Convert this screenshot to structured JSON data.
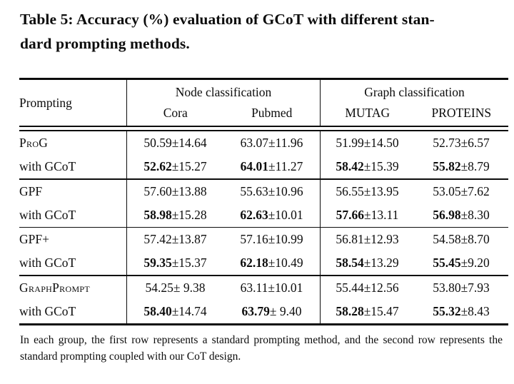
{
  "caption": {
    "line1": "Table 5: Accuracy (%) evaluation of GCoT with different stan-",
    "line2": "dard prompting methods."
  },
  "header": {
    "prompting": "Prompting",
    "groups": [
      {
        "label": "Node classification",
        "cols": [
          "Cora",
          "Pubmed"
        ]
      },
      {
        "label": "Graph classification",
        "cols": [
          "MUTAG",
          "PROTEINS"
        ]
      }
    ]
  },
  "body": {
    "groups": [
      {
        "rows": [
          {
            "method": "ProG",
            "smallcaps": true,
            "bold": false,
            "cells": [
              {
                "mean": "50.59",
                "std": "±14.64"
              },
              {
                "mean": "63.07",
                "std": "±11.96"
              },
              {
                "mean": "51.99",
                "std": "±14.50"
              },
              {
                "mean": "52.73",
                "std": "±6.57"
              }
            ]
          },
          {
            "method": "with GCoT",
            "smallcaps": false,
            "bold": true,
            "cells": [
              {
                "mean": "52.62",
                "std": "±15.27"
              },
              {
                "mean": "64.01",
                "std": "±11.27"
              },
              {
                "mean": "58.42",
                "std": "±15.39"
              },
              {
                "mean": "55.82",
                "std": "±8.79"
              }
            ]
          }
        ]
      },
      {
        "rows": [
          {
            "method": "GPF",
            "smallcaps": false,
            "bold": false,
            "cells": [
              {
                "mean": "57.60",
                "std": "±13.88"
              },
              {
                "mean": "55.63",
                "std": "±10.96"
              },
              {
                "mean": "56.55",
                "std": "±13.95"
              },
              {
                "mean": "53.05",
                "std": "±7.62"
              }
            ]
          },
          {
            "method": "with GCoT",
            "smallcaps": false,
            "bold": true,
            "cells": [
              {
                "mean": "58.98",
                "std": "±15.28"
              },
              {
                "mean": "62.63",
                "std": "±10.01"
              },
              {
                "mean": "57.66",
                "std": "±13.11"
              },
              {
                "mean": "56.98",
                "std": "±8.30"
              }
            ]
          }
        ]
      },
      {
        "rows": [
          {
            "method": "GPF+",
            "smallcaps": false,
            "bold": false,
            "cells": [
              {
                "mean": "57.42",
                "std": "±13.87"
              },
              {
                "mean": "57.16",
                "std": "±10.99"
              },
              {
                "mean": "56.81",
                "std": "±12.93"
              },
              {
                "mean": "54.58",
                "std": "±8.70"
              }
            ]
          },
          {
            "method": "with GCoT",
            "smallcaps": false,
            "bold": true,
            "cells": [
              {
                "mean": "59.35",
                "std": "±15.37"
              },
              {
                "mean": "62.18",
                "std": "±10.49"
              },
              {
                "mean": "58.54",
                "std": "±13.29"
              },
              {
                "mean": "55.45",
                "std": "±9.20"
              }
            ]
          }
        ]
      },
      {
        "rows": [
          {
            "method": "GraphPrompt",
            "smallcaps": true,
            "bold": false,
            "cells": [
              {
                "mean": "54.25",
                "std": "± 9.38"
              },
              {
                "mean": "63.11",
                "std": "±10.01"
              },
              {
                "mean": "55.44",
                "std": "±12.56"
              },
              {
                "mean": "53.80",
                "std": "±7.93"
              }
            ]
          },
          {
            "method": "with GCoT",
            "smallcaps": false,
            "bold": true,
            "cells": [
              {
                "mean": "58.40",
                "std": "±14.74"
              },
              {
                "mean": "63.79",
                "std": "± 9.40"
              },
              {
                "mean": "58.28",
                "std": "±15.47"
              },
              {
                "mean": "55.32",
                "std": "±8.43"
              }
            ]
          }
        ]
      }
    ]
  },
  "footnote": "In each group, the first row represents a standard prompting method, and the second row represents the standard prompting coupled with our CoT design.",
  "colors": {
    "ink": "#0c0c0c",
    "background": "#ffffff"
  }
}
